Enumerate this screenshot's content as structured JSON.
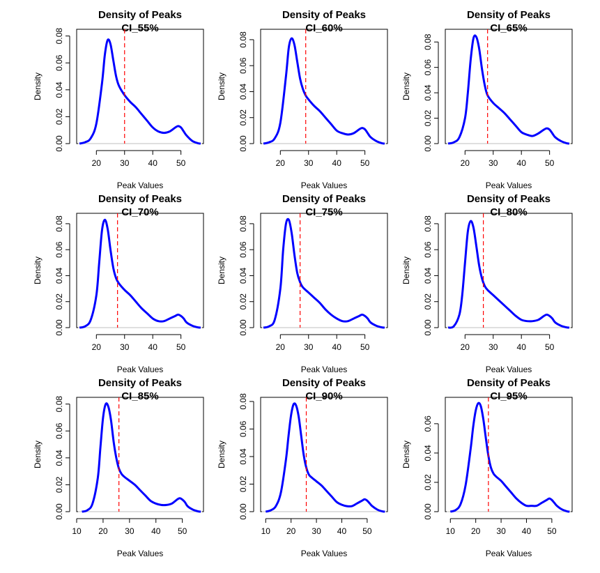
{
  "chart_data": [
    {
      "type": "line",
      "title": "Density of Peaks",
      "subtitle": "CI_55%",
      "xlabel": "Peak Values",
      "ylabel": "Density",
      "xlim": [
        13,
        58
      ],
      "ylim": [
        0,
        0.085
      ],
      "xticks": [
        20,
        30,
        40,
        50
      ],
      "yticks": [
        "0.00",
        "0.02",
        "0.04",
        "0.06",
        "0.08"
      ],
      "cutoff": 30,
      "series": [
        {
          "name": "density",
          "color": "#0000ff",
          "x": [
            14,
            16,
            18,
            20,
            22,
            23,
            24,
            25,
            26,
            27,
            28,
            30,
            32,
            34,
            36,
            38,
            40,
            42,
            44,
            46,
            48,
            49,
            50,
            51,
            52,
            54,
            56,
            57
          ],
          "y": [
            0,
            0.001,
            0.004,
            0.015,
            0.045,
            0.066,
            0.077,
            0.074,
            0.062,
            0.05,
            0.043,
            0.036,
            0.031,
            0.027,
            0.022,
            0.017,
            0.012,
            0.009,
            0.008,
            0.009,
            0.012,
            0.013,
            0.012,
            0.009,
            0.006,
            0.002,
            0.0003,
            0
          ]
        }
      ]
    },
    {
      "type": "line",
      "title": "Density of Peaks",
      "subtitle": "CI_60%",
      "xlabel": "Peak Values",
      "ylabel": "Density",
      "xlim": [
        13,
        58
      ],
      "ylim": [
        0,
        0.088
      ],
      "xticks": [
        20,
        30,
        40,
        50
      ],
      "yticks": [
        "0.00",
        "0.02",
        "0.04",
        "0.06",
        "0.08"
      ],
      "cutoff": 29,
      "series": [
        {
          "name": "density",
          "color": "#0000ff",
          "x": [
            14,
            16,
            18,
            20,
            22,
            23,
            24,
            25,
            26,
            27,
            28,
            29,
            30,
            32,
            34,
            36,
            38,
            40,
            42,
            44,
            46,
            48,
            49,
            50,
            51,
            52,
            54,
            56,
            57
          ],
          "y": [
            0,
            0.001,
            0.004,
            0.016,
            0.052,
            0.074,
            0.081,
            0.076,
            0.063,
            0.05,
            0.042,
            0.037,
            0.034,
            0.029,
            0.025,
            0.02,
            0.015,
            0.01,
            0.008,
            0.007,
            0.008,
            0.011,
            0.012,
            0.011,
            0.008,
            0.005,
            0.002,
            0.0003,
            0
          ]
        }
      ]
    },
    {
      "type": "line",
      "title": "Density of Peaks",
      "subtitle": "CI_65%",
      "xlabel": "Peak Values",
      "ylabel": "Density",
      "xlim": [
        13,
        58
      ],
      "ylim": [
        0,
        0.09
      ],
      "xticks": [
        20,
        30,
        40,
        50
      ],
      "yticks": [
        "0.00",
        "0.02",
        "0.04",
        "0.06",
        "0.08"
      ],
      "cutoff": 28,
      "series": [
        {
          "name": "density",
          "color": "#0000ff",
          "x": [
            14,
            16,
            18,
            20,
            21,
            22,
            23,
            24,
            25,
            26,
            27,
            28,
            30,
            32,
            34,
            36,
            38,
            40,
            42,
            44,
            46,
            48,
            49,
            50,
            51,
            52,
            54,
            56,
            57
          ],
          "y": [
            0,
            0.001,
            0.005,
            0.02,
            0.04,
            0.066,
            0.083,
            0.084,
            0.075,
            0.059,
            0.046,
            0.038,
            0.032,
            0.028,
            0.024,
            0.019,
            0.014,
            0.009,
            0.007,
            0.006,
            0.008,
            0.011,
            0.012,
            0.011,
            0.008,
            0.005,
            0.002,
            0.0003,
            0
          ]
        }
      ]
    },
    {
      "type": "line",
      "title": "Density of Peaks",
      "subtitle": "CI_70%",
      "xlabel": "Peak Values",
      "ylabel": "Density",
      "xlim": [
        13,
        58
      ],
      "ylim": [
        0,
        0.088
      ],
      "xticks": [
        20,
        30,
        40,
        50
      ],
      "yticks": [
        "0.00",
        "0.02",
        "0.04",
        "0.06",
        "0.08"
      ],
      "cutoff": 27.5,
      "series": [
        {
          "name": "density",
          "color": "#0000ff",
          "x": [
            14,
            16,
            18,
            20,
            21,
            22,
            23,
            24,
            25,
            26,
            27,
            28,
            30,
            32,
            34,
            36,
            38,
            40,
            42,
            44,
            46,
            48,
            49,
            50,
            51,
            52,
            54,
            56,
            57
          ],
          "y": [
            0,
            0.001,
            0.006,
            0.025,
            0.05,
            0.075,
            0.083,
            0.076,
            0.06,
            0.046,
            0.038,
            0.034,
            0.029,
            0.025,
            0.02,
            0.015,
            0.011,
            0.007,
            0.005,
            0.005,
            0.007,
            0.009,
            0.01,
            0.009,
            0.007,
            0.004,
            0.0015,
            0.0002,
            0
          ]
        }
      ]
    },
    {
      "type": "line",
      "title": "Density of Peaks",
      "subtitle": "CI_75%",
      "xlabel": "Peak Values",
      "ylabel": "Density",
      "xlim": [
        13,
        58
      ],
      "ylim": [
        0,
        0.088
      ],
      "xticks": [
        20,
        30,
        40,
        50
      ],
      "yticks": [
        "0.00",
        "0.02",
        "0.04",
        "0.06",
        "0.08"
      ],
      "cutoff": 27,
      "series": [
        {
          "name": "density",
          "color": "#0000ff",
          "x": [
            14,
            16,
            18,
            20,
            21,
            22,
            23,
            24,
            25,
            26,
            27,
            28,
            30,
            32,
            34,
            36,
            38,
            40,
            42,
            44,
            46,
            48,
            49,
            50,
            51,
            52,
            54,
            56,
            57
          ],
          "y": [
            0,
            0.001,
            0.006,
            0.03,
            0.06,
            0.08,
            0.083,
            0.073,
            0.056,
            0.042,
            0.035,
            0.031,
            0.027,
            0.023,
            0.019,
            0.014,
            0.01,
            0.007,
            0.005,
            0.005,
            0.007,
            0.009,
            0.01,
            0.009,
            0.007,
            0.004,
            0.0015,
            0.0002,
            0
          ]
        }
      ]
    },
    {
      "type": "line",
      "title": "Density of Peaks",
      "subtitle": "CI_80%",
      "xlabel": "Peak Values",
      "ylabel": "Density",
      "xlim": [
        13,
        58
      ],
      "ylim": [
        0,
        0.088
      ],
      "xticks": [
        20,
        30,
        40,
        50
      ],
      "yticks": [
        "0.00",
        "0.02",
        "0.04",
        "0.06",
        "0.08"
      ],
      "cutoff": 26.5,
      "series": [
        {
          "name": "density",
          "color": "#0000ff",
          "x": [
            14,
            16,
            18,
            19,
            20,
            21,
            22,
            23,
            24,
            25,
            26,
            27,
            28,
            30,
            32,
            34,
            36,
            38,
            40,
            42,
            44,
            46,
            48,
            49,
            50,
            51,
            52,
            54,
            56,
            57
          ],
          "y": [
            0,
            0.001,
            0.01,
            0.025,
            0.05,
            0.074,
            0.082,
            0.077,
            0.063,
            0.048,
            0.038,
            0.032,
            0.029,
            0.025,
            0.021,
            0.017,
            0.013,
            0.009,
            0.006,
            0.005,
            0.005,
            0.006,
            0.009,
            0.01,
            0.009,
            0.007,
            0.004,
            0.0015,
            0.0002,
            0
          ]
        }
      ]
    },
    {
      "type": "line",
      "title": "Density of Peaks",
      "subtitle": "CI_85%",
      "xlabel": "Peak Values",
      "ylabel": "Density",
      "xlim": [
        10,
        58
      ],
      "ylim": [
        0,
        0.085
      ],
      "xticks": [
        10,
        20,
        30,
        40,
        50
      ],
      "yticks": [
        "0.00",
        "0.02",
        "0.04",
        "0.06",
        "0.08"
      ],
      "cutoff": 26,
      "series": [
        {
          "name": "density",
          "color": "#0000ff",
          "x": [
            12,
            14,
            16,
            18,
            19,
            20,
            21,
            22,
            23,
            24,
            25,
            26,
            27,
            28,
            30,
            32,
            34,
            36,
            38,
            40,
            42,
            44,
            46,
            48,
            49,
            50,
            51,
            52,
            54,
            56,
            57
          ],
          "y": [
            0,
            0.001,
            0.006,
            0.025,
            0.048,
            0.07,
            0.08,
            0.078,
            0.068,
            0.052,
            0.04,
            0.032,
            0.028,
            0.026,
            0.023,
            0.02,
            0.016,
            0.012,
            0.008,
            0.006,
            0.005,
            0.005,
            0.006,
            0.009,
            0.01,
            0.009,
            0.007,
            0.004,
            0.0015,
            0.0002,
            0
          ]
        }
      ]
    },
    {
      "type": "line",
      "title": "Density of Peaks",
      "subtitle": "CI_90%",
      "xlabel": "Peak Values",
      "ylabel": "Density",
      "xlim": [
        8,
        58
      ],
      "ylim": [
        0,
        0.083
      ],
      "xticks": [
        10,
        20,
        30,
        40,
        50
      ],
      "yticks": [
        "0.00",
        "0.02",
        "0.04",
        "0.06",
        "0.08"
      ],
      "cutoff": 26,
      "series": [
        {
          "name": "density",
          "color": "#0000ff",
          "x": [
            10,
            12,
            14,
            16,
            18,
            19,
            20,
            21,
            22,
            23,
            24,
            25,
            26,
            27,
            28,
            30,
            32,
            34,
            36,
            38,
            40,
            42,
            44,
            46,
            48,
            49,
            50,
            51,
            52,
            54,
            56,
            57
          ],
          "y": [
            0,
            0.001,
            0.004,
            0.014,
            0.038,
            0.055,
            0.07,
            0.078,
            0.077,
            0.069,
            0.055,
            0.041,
            0.032,
            0.027,
            0.025,
            0.022,
            0.019,
            0.015,
            0.011,
            0.007,
            0.005,
            0.004,
            0.004,
            0.006,
            0.008,
            0.009,
            0.008,
            0.006,
            0.004,
            0.0015,
            0.0002,
            0
          ]
        }
      ]
    },
    {
      "type": "line",
      "title": "Density of Peaks",
      "subtitle": "CI_95%",
      "xlabel": "Peak Values",
      "ylabel": "Density",
      "xlim": [
        8,
        58
      ],
      "ylim": [
        0,
        0.078
      ],
      "xticks": [
        10,
        20,
        30,
        40,
        50
      ],
      "yticks": [
        "0.00",
        "0.02",
        "0.04",
        "0.06"
      ],
      "cutoff": 25,
      "series": [
        {
          "name": "density",
          "color": "#0000ff",
          "x": [
            10,
            12,
            14,
            16,
            18,
            19,
            20,
            21,
            22,
            23,
            24,
            25,
            26,
            27,
            28,
            30,
            32,
            34,
            36,
            38,
            40,
            42,
            44,
            46,
            48,
            49,
            50,
            51,
            52,
            54,
            56,
            57
          ],
          "y": [
            0,
            0.001,
            0.005,
            0.018,
            0.043,
            0.058,
            0.069,
            0.074,
            0.072,
            0.063,
            0.05,
            0.038,
            0.03,
            0.026,
            0.024,
            0.021,
            0.017,
            0.013,
            0.009,
            0.006,
            0.004,
            0.004,
            0.004,
            0.006,
            0.008,
            0.009,
            0.008,
            0.006,
            0.004,
            0.0015,
            0.0002,
            0
          ]
        }
      ]
    }
  ]
}
